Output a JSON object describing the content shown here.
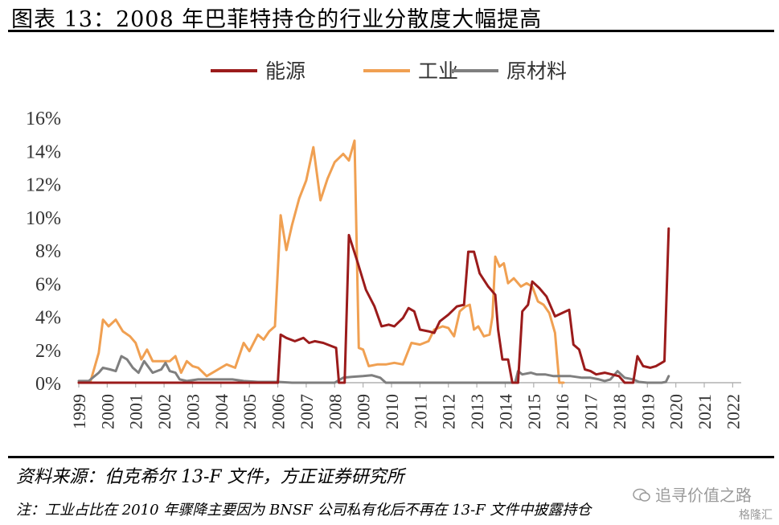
{
  "header": {
    "title": "图表 13：2008 年巴菲特持仓的行业分散度大幅提高"
  },
  "footer": {
    "source": "资料来源：伯克希尔 13-F 文件，方正证券研究所",
    "note": "注：工业占比在 2010 年骤降主要因为 BNSF 公司私有化后不再在 13-F 文件中披露持仓",
    "watermark": "追寻价值之路",
    "watermark_sub": "格隆汇"
  },
  "chart_data": {
    "type": "line",
    "title": "",
    "xlabel": "",
    "ylabel": "",
    "ylim": [
      0,
      16
    ],
    "y_ticks": [
      "0%",
      "2%",
      "4%",
      "6%",
      "8%",
      "10%",
      "12%",
      "14%",
      "16%"
    ],
    "x_ticks": [
      "1999",
      "2000",
      "2001",
      "2002",
      "2003",
      "2004",
      "2005",
      "2006",
      "2007",
      "2008",
      "2009",
      "2010",
      "2011",
      "2012",
      "2013",
      "2014",
      "2015",
      "2016",
      "2017",
      "2018",
      "2019",
      "2020",
      "2021",
      "2022"
    ],
    "xlim": [
      1999,
      2022.3
    ],
    "grid": false,
    "legend_position": "top",
    "series": [
      {
        "name": "能源",
        "color": "#9b1b1b",
        "points": [
          [
            1999.0,
            0.0
          ],
          [
            2003.0,
            0.0
          ],
          [
            2006.0,
            0.0
          ],
          [
            2006.1,
            2.9
          ],
          [
            2006.3,
            2.7
          ],
          [
            2006.6,
            2.5
          ],
          [
            2006.9,
            2.7
          ],
          [
            2007.1,
            2.4
          ],
          [
            2007.3,
            2.5
          ],
          [
            2007.6,
            2.4
          ],
          [
            2007.9,
            2.2
          ],
          [
            2008.05,
            2.1
          ],
          [
            2008.15,
            0.0
          ],
          [
            2008.35,
            0.0
          ],
          [
            2008.5,
            8.9
          ],
          [
            2008.8,
            7.3
          ],
          [
            2009.1,
            5.6
          ],
          [
            2009.4,
            4.6
          ],
          [
            2009.65,
            3.4
          ],
          [
            2009.9,
            3.5
          ],
          [
            2010.1,
            3.4
          ],
          [
            2010.4,
            3.9
          ],
          [
            2010.6,
            4.5
          ],
          [
            2010.8,
            4.3
          ],
          [
            2011.0,
            3.2
          ],
          [
            2011.3,
            3.1
          ],
          [
            2011.5,
            3.0
          ],
          [
            2011.7,
            3.7
          ],
          [
            2012.0,
            4.1
          ],
          [
            2012.3,
            4.6
          ],
          [
            2012.55,
            4.7
          ],
          [
            2012.7,
            7.9
          ],
          [
            2012.9,
            7.9
          ],
          [
            2013.1,
            6.6
          ],
          [
            2013.4,
            5.8
          ],
          [
            2013.65,
            5.3
          ],
          [
            2013.75,
            3.2
          ],
          [
            2013.9,
            1.4
          ],
          [
            2014.1,
            1.4
          ],
          [
            2014.25,
            0.0
          ],
          [
            2014.45,
            0.0
          ],
          [
            2014.6,
            4.3
          ],
          [
            2014.8,
            4.7
          ],
          [
            2014.95,
            6.1
          ],
          [
            2015.2,
            5.7
          ],
          [
            2015.45,
            5.2
          ],
          [
            2015.75,
            4.0
          ],
          [
            2016.0,
            4.2
          ],
          [
            2016.25,
            4.4
          ],
          [
            2016.4,
            2.3
          ],
          [
            2016.6,
            2.0
          ],
          [
            2016.8,
            0.8
          ],
          [
            2017.0,
            0.7
          ],
          [
            2017.2,
            0.5
          ],
          [
            2017.5,
            0.6
          ],
          [
            2017.75,
            0.5
          ],
          [
            2018.0,
            0.4
          ],
          [
            2018.2,
            0.0
          ],
          [
            2018.5,
            0.0
          ],
          [
            2018.65,
            1.6
          ],
          [
            2018.85,
            1.0
          ],
          [
            2019.1,
            0.9
          ],
          [
            2019.3,
            1.0
          ],
          [
            2019.5,
            1.2
          ],
          [
            2019.6,
            1.3
          ],
          [
            2019.75,
            9.3
          ]
        ]
      },
      {
        "name": "工业",
        "color": "#f0a052",
        "points": [
          [
            1999.0,
            0.0
          ],
          [
            1999.4,
            0.0
          ],
          [
            1999.7,
            1.8
          ],
          [
            1999.85,
            3.8
          ],
          [
            2000.05,
            3.4
          ],
          [
            2000.3,
            3.8
          ],
          [
            2000.55,
            3.1
          ],
          [
            2000.8,
            2.8
          ],
          [
            2001.0,
            2.4
          ],
          [
            2001.2,
            1.4
          ],
          [
            2001.4,
            2.0
          ],
          [
            2001.6,
            1.3
          ],
          [
            2001.8,
            1.3
          ],
          [
            2002.0,
            1.3
          ],
          [
            2002.2,
            1.3
          ],
          [
            2002.4,
            1.6
          ],
          [
            2002.6,
            0.6
          ],
          [
            2002.8,
            1.3
          ],
          [
            2003.0,
            1.0
          ],
          [
            2003.2,
            0.9
          ],
          [
            2003.5,
            0.4
          ],
          [
            2003.8,
            0.7
          ],
          [
            2004.0,
            0.9
          ],
          [
            2004.2,
            1.1
          ],
          [
            2004.5,
            0.9
          ],
          [
            2004.8,
            2.4
          ],
          [
            2005.0,
            1.9
          ],
          [
            2005.3,
            2.9
          ],
          [
            2005.5,
            2.6
          ],
          [
            2005.7,
            3.1
          ],
          [
            2005.9,
            3.4
          ],
          [
            2006.1,
            10.1
          ],
          [
            2006.3,
            8.0
          ],
          [
            2006.5,
            9.5
          ],
          [
            2006.75,
            11.1
          ],
          [
            2007.0,
            12.2
          ],
          [
            2007.25,
            14.2
          ],
          [
            2007.5,
            11.0
          ],
          [
            2007.75,
            12.3
          ],
          [
            2008.0,
            13.3
          ],
          [
            2008.3,
            13.8
          ],
          [
            2008.5,
            13.4
          ],
          [
            2008.7,
            14.6
          ],
          [
            2008.85,
            2.1
          ],
          [
            2009.0,
            2.0
          ],
          [
            2009.2,
            1.0
          ],
          [
            2009.5,
            1.1
          ],
          [
            2009.8,
            1.1
          ],
          [
            2010.1,
            1.2
          ],
          [
            2010.4,
            1.1
          ],
          [
            2010.7,
            2.4
          ],
          [
            2011.0,
            2.3
          ],
          [
            2011.3,
            2.5
          ],
          [
            2011.5,
            3.2
          ],
          [
            2011.8,
            3.4
          ],
          [
            2012.0,
            3.3
          ],
          [
            2012.2,
            2.8
          ],
          [
            2012.4,
            4.3
          ],
          [
            2012.6,
            4.6
          ],
          [
            2012.75,
            4.7
          ],
          [
            2012.9,
            3.2
          ],
          [
            2013.05,
            3.4
          ],
          [
            2013.25,
            2.8
          ],
          [
            2013.45,
            2.9
          ],
          [
            2013.55,
            4.0
          ],
          [
            2013.65,
            7.6
          ],
          [
            2013.8,
            7.0
          ],
          [
            2013.95,
            7.2
          ],
          [
            2014.1,
            6.0
          ],
          [
            2014.3,
            6.3
          ],
          [
            2014.55,
            5.8
          ],
          [
            2014.75,
            6.0
          ],
          [
            2014.95,
            5.8
          ],
          [
            2015.15,
            4.9
          ],
          [
            2015.35,
            4.7
          ],
          [
            2015.55,
            4.2
          ],
          [
            2015.75,
            3.0
          ],
          [
            2015.9,
            0.0
          ],
          [
            2016.0,
            0.0
          ],
          [
            2016.05,
            0.0
          ]
        ]
      },
      {
        "name": "原材料",
        "color": "#7f7f7f",
        "points": [
          [
            1999.0,
            0.1
          ],
          [
            1999.35,
            0.1
          ],
          [
            1999.7,
            0.6
          ],
          [
            1999.85,
            0.9
          ],
          [
            2000.1,
            0.8
          ],
          [
            2000.3,
            0.7
          ],
          [
            2000.5,
            1.6
          ],
          [
            2000.7,
            1.4
          ],
          [
            2000.9,
            0.9
          ],
          [
            2001.1,
            0.6
          ],
          [
            2001.3,
            1.3
          ],
          [
            2001.6,
            0.6
          ],
          [
            2001.9,
            0.8
          ],
          [
            2002.05,
            1.2
          ],
          [
            2002.2,
            0.7
          ],
          [
            2002.4,
            0.6
          ],
          [
            2002.55,
            0.2
          ],
          [
            2002.8,
            0.1
          ],
          [
            2003.2,
            0.2
          ],
          [
            2003.6,
            0.2
          ],
          [
            2004.0,
            0.2
          ],
          [
            2004.4,
            0.2
          ],
          [
            2004.8,
            0.1
          ],
          [
            2005.3,
            0.05
          ],
          [
            2006.0,
            0.05
          ],
          [
            2006.5,
            0.0
          ],
          [
            2007.3,
            0.0
          ],
          [
            2008.0,
            0.0
          ],
          [
            2008.3,
            0.3
          ],
          [
            2008.6,
            0.35
          ],
          [
            2009.0,
            0.4
          ],
          [
            2009.3,
            0.45
          ],
          [
            2009.6,
            0.3
          ],
          [
            2009.8,
            0.0
          ],
          [
            2010.5,
            0.0
          ],
          [
            2011.5,
            0.0
          ],
          [
            2012.5,
            0.0
          ],
          [
            2013.0,
            0.0
          ],
          [
            2014.0,
            0.0
          ],
          [
            2014.35,
            0.0
          ],
          [
            2014.45,
            0.7
          ],
          [
            2014.6,
            0.5
          ],
          [
            2014.9,
            0.6
          ],
          [
            2015.1,
            0.5
          ],
          [
            2015.4,
            0.5
          ],
          [
            2015.7,
            0.4
          ],
          [
            2016.0,
            0.4
          ],
          [
            2016.3,
            0.4
          ],
          [
            2016.7,
            0.3
          ],
          [
            2017.0,
            0.3
          ],
          [
            2017.3,
            0.2
          ],
          [
            2017.5,
            0.1
          ],
          [
            2017.7,
            0.2
          ],
          [
            2017.95,
            0.7
          ],
          [
            2018.2,
            0.3
          ],
          [
            2018.5,
            0.2
          ],
          [
            2018.7,
            0.05
          ],
          [
            2019.0,
            0.0
          ],
          [
            2019.5,
            0.0
          ],
          [
            2019.65,
            0.05
          ],
          [
            2019.75,
            0.4
          ]
        ]
      }
    ]
  }
}
